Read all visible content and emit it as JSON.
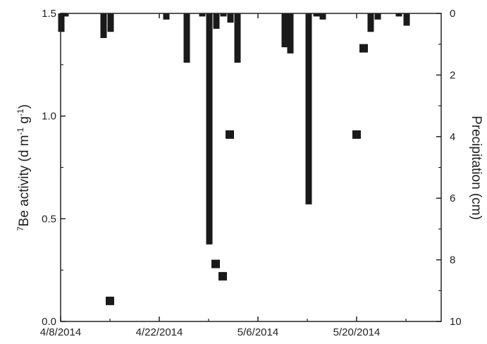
{
  "chart_data": {
    "type": "bar",
    "left_axis": {
      "label_sup": "7",
      "label_main": "Be activity (d m",
      "label_sup2": "-1",
      "label_mid": " g",
      "label_sup3": "-1",
      "label_end": ")",
      "ylim": [
        0,
        1.5
      ],
      "ticks": [
        "0.0",
        "0.5",
        "1.0",
        "1.5"
      ]
    },
    "right_axis": {
      "label": "Precipitation (cm)",
      "ylim": [
        0,
        10
      ],
      "inverted": true,
      "ticks": [
        "0",
        "2",
        "4",
        "6",
        "8",
        "10"
      ]
    },
    "x_axis": {
      "ticks": [
        "4/8/2014",
        "4/22/2014",
        "5/6/2014",
        "5/20/2014"
      ],
      "range_days": [
        0,
        54
      ]
    },
    "precipitation": [
      {
        "day": 0.1,
        "cm": 0.6
      },
      {
        "day": 0.7,
        "cm": 0.1
      },
      {
        "day": 6.1,
        "cm": 0.8
      },
      {
        "day": 7.1,
        "cm": 0.6
      },
      {
        "day": 15.0,
        "cm": 0.2
      },
      {
        "day": 17.9,
        "cm": 1.6
      },
      {
        "day": 20.1,
        "cm": 0.1
      },
      {
        "day": 21.1,
        "cm": 7.5
      },
      {
        "day": 22.1,
        "cm": 0.5
      },
      {
        "day": 23.1,
        "cm": 0.1
      },
      {
        "day": 24.1,
        "cm": 0.3
      },
      {
        "day": 25.1,
        "cm": 1.6
      },
      {
        "day": 31.8,
        "cm": 1.1
      },
      {
        "day": 32.6,
        "cm": 1.3
      },
      {
        "day": 35.2,
        "cm": 6.2
      },
      {
        "day": 36.3,
        "cm": 0.1
      },
      {
        "day": 37.2,
        "cm": 0.2
      },
      {
        "day": 44.0,
        "cm": 0.6
      },
      {
        "day": 45.0,
        "cm": 0.2
      },
      {
        "day": 48.0,
        "cm": 0.1
      },
      {
        "day": 49.1,
        "cm": 0.4
      }
    ],
    "be7_activity": [
      {
        "day": 7.0,
        "value": 0.1
      },
      {
        "day": 22.0,
        "value": 0.28
      },
      {
        "day": 23.0,
        "value": 0.22
      },
      {
        "day": 24.0,
        "value": 0.91
      },
      {
        "day": 42.0,
        "value": 0.91
      },
      {
        "day": 43.0,
        "value": 1.33
      }
    ],
    "colors": {
      "bars": "#1a1a1a",
      "markers": "#1a1a1a",
      "axes": "#222222"
    }
  }
}
